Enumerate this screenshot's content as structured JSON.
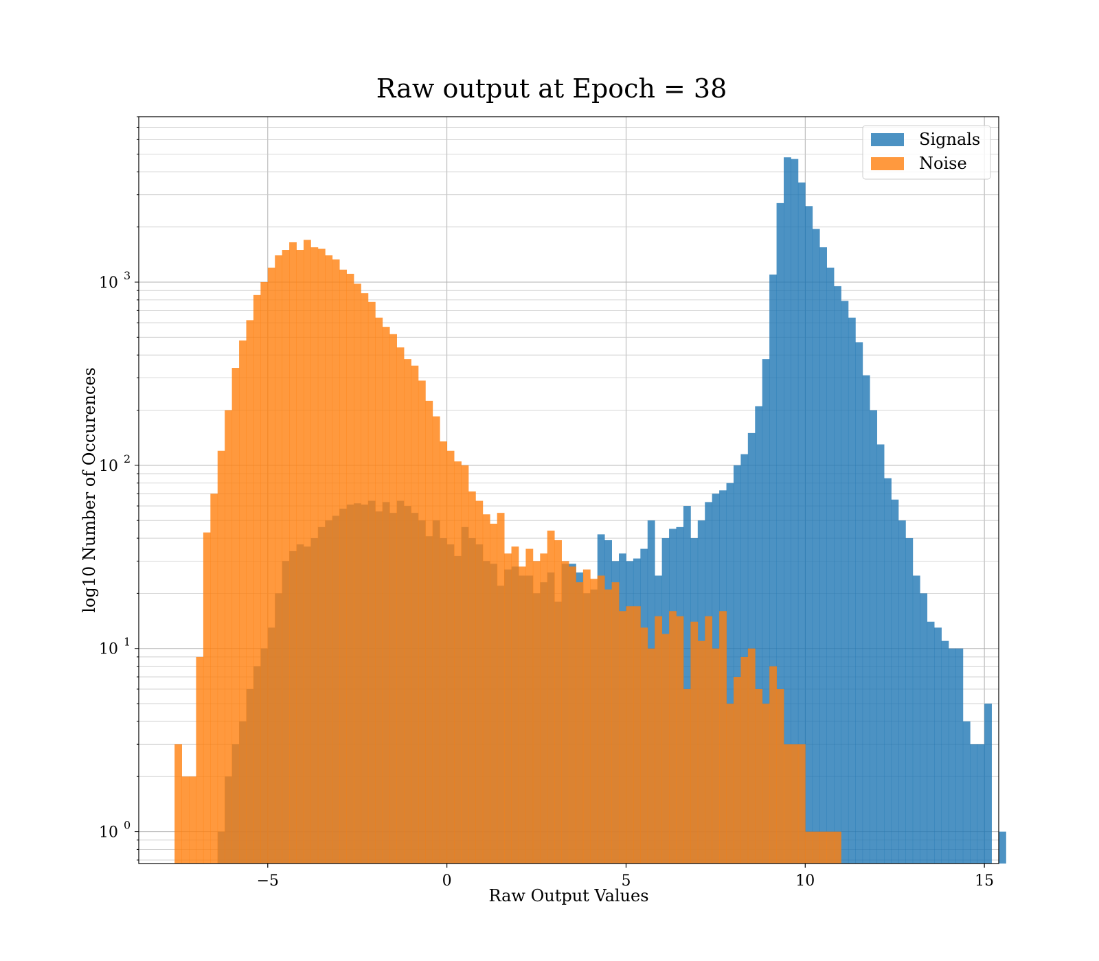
{
  "chart_data": {
    "type": "bar",
    "title": "Raw output at Epoch = 38",
    "xlabel": "Raw Output Values",
    "ylabel": "log10 Number of Occurences",
    "yscale": "log",
    "xlim": [
      -8.6,
      15.4
    ],
    "ylim": [
      0.67,
      8000
    ],
    "xticks": [
      -5,
      0,
      5,
      10,
      15
    ],
    "xtick_labels": [
      "−5",
      "0",
      "5",
      "10",
      "15"
    ],
    "yticks": [
      1,
      10,
      100,
      1000
    ],
    "ytick_base": "10",
    "ytick_exponents": [
      "0",
      "1",
      "2",
      "3"
    ],
    "grid": true,
    "legend_position": "top-right",
    "bin_width": 0.2,
    "series": [
      {
        "name": "Signals",
        "color": "#1f77b4",
        "bin_start": -6.4,
        "values": [
          1,
          2,
          3,
          4,
          6,
          8,
          10,
          13,
          20,
          30,
          34,
          37,
          36,
          40,
          46,
          50,
          53,
          58,
          61,
          62,
          61,
          64,
          56,
          63,
          55,
          64,
          60,
          55,
          50,
          41,
          50,
          40,
          37,
          32,
          46,
          40,
          37,
          30,
          29,
          22,
          27,
          28,
          25,
          25,
          20,
          23,
          26,
          18,
          29,
          29,
          26,
          20,
          21,
          42,
          39,
          30,
          33,
          30,
          31,
          35,
          50,
          25,
          40,
          45,
          46,
          60,
          40,
          50,
          63,
          70,
          73,
          80,
          100,
          115,
          150,
          210,
          380,
          1100,
          2700,
          4800,
          4700,
          3500,
          2600,
          1950,
          1550,
          1200,
          950,
          790,
          640,
          470,
          310,
          200,
          130,
          85,
          65,
          50,
          40,
          25,
          20,
          14,
          13,
          11,
          10,
          10,
          4,
          3,
          3,
          5,
          0,
          1
        ],
        "legend_label": "Signals"
      },
      {
        "name": "Noise",
        "color": "#ff7f0e",
        "bin_start": -7.6,
        "values": [
          3,
          2,
          2,
          9,
          43,
          70,
          120,
          200,
          340,
          480,
          620,
          850,
          1000,
          1200,
          1400,
          1500,
          1650,
          1500,
          1700,
          1550,
          1520,
          1400,
          1330,
          1170,
          1110,
          980,
          870,
          780,
          640,
          570,
          520,
          440,
          380,
          350,
          290,
          225,
          185,
          135,
          120,
          105,
          100,
          72,
          64,
          54,
          48,
          55,
          33,
          36,
          28,
          35,
          30,
          33,
          44,
          39,
          30,
          28,
          23,
          27,
          24,
          25,
          21,
          23,
          16,
          17,
          17,
          13,
          10,
          15,
          12,
          16,
          15,
          6,
          14,
          11,
          15,
          10,
          16,
          5,
          7,
          9,
          10,
          6,
          5,
          8,
          6,
          3,
          3,
          3,
          1,
          1,
          1,
          1,
          1
        ],
        "legend_label": "Noise"
      }
    ]
  }
}
